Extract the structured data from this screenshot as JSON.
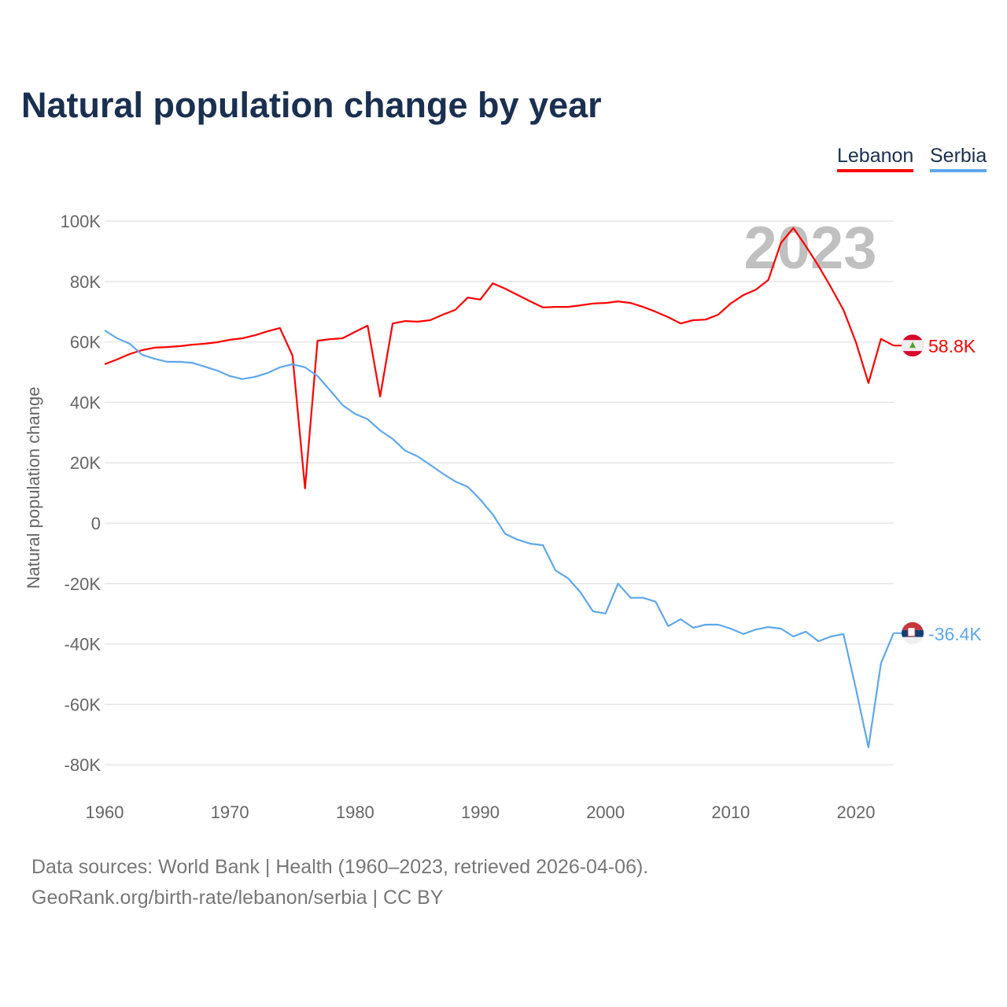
{
  "title": "Natural population change by year",
  "legend": [
    {
      "label": "Lebanon",
      "color": "#ff0000"
    },
    {
      "label": "Serbia",
      "color": "#5ea7ec"
    }
  ],
  "footer": {
    "line1": "Data sources: World Bank | Health (1960–2023, retrieved 2026-04-06).",
    "line2": "GeoRank.org/birth-rate/lebanon/serbia | CC BY"
  },
  "chart_data": {
    "type": "line",
    "title": "Natural population change by year",
    "xlabel": "",
    "ylabel": "Natural population change",
    "year_watermark": "2023",
    "xlim": [
      1960,
      2023
    ],
    "ylim": [
      -80000,
      100000
    ],
    "x_ticks": [
      "1960",
      "1970",
      "1980",
      "1990",
      "2000",
      "2010",
      "2020"
    ],
    "y_ticks": [
      {
        "v": 100000,
        "label": "100K"
      },
      {
        "v": 80000,
        "label": "80K"
      },
      {
        "v": 60000,
        "label": "60K"
      },
      {
        "v": 40000,
        "label": "40K"
      },
      {
        "v": 20000,
        "label": "20K"
      },
      {
        "v": 0,
        "label": "0"
      },
      {
        "v": -20000,
        "label": "-20K"
      },
      {
        "v": -40000,
        "label": "-40K"
      },
      {
        "v": -60000,
        "label": "-60K"
      },
      {
        "v": -80000,
        "label": "-80K"
      }
    ],
    "grid": true,
    "legend_position": "top-right",
    "x_start": 1960,
    "series": [
      {
        "name": "Lebanon",
        "color": "#ff0000",
        "end_label": "58.8K",
        "flag": "lebanon-flag",
        "values": [
          52.6,
          54.2,
          56,
          57.3,
          58.1,
          58.3,
          58.6,
          59.1,
          59.4,
          59.9,
          60.7,
          61.2,
          62.2,
          63.5,
          64.6,
          55.5,
          11.5,
          60.4,
          60.9,
          61.2,
          63.3,
          65.4,
          41.9,
          66.1,
          66.9,
          66.7,
          67.2,
          69,
          70.6,
          74.7,
          74,
          79.4,
          77.6,
          75.5,
          73.4,
          71.4,
          71.6,
          71.6,
          72.1,
          72.7,
          72.9,
          73.4,
          72.9,
          71.6,
          70,
          68.2,
          66.1,
          67.2,
          67.4,
          69,
          72.7,
          75.5,
          77.3,
          80.5,
          92.7,
          97.7,
          91.7,
          85.2,
          78.1,
          70.6,
          59.9,
          46.4,
          61,
          58.8
        ]
      },
      {
        "name": "Serbia",
        "color": "#5ea7ec",
        "end_label": "-36.4K",
        "flag": "serbia-flag",
        "values": [
          63.8,
          61.2,
          59.4,
          55.7,
          54.4,
          53.4,
          53.4,
          53.1,
          51.8,
          50.5,
          48.7,
          47.7,
          48.4,
          49.7,
          51.6,
          52.6,
          51.6,
          48.7,
          44,
          39.1,
          36.2,
          34.4,
          30.7,
          27.9,
          24,
          22.1,
          19.3,
          16.4,
          13.8,
          12,
          7.8,
          2.9,
          -3.6,
          -5.5,
          -6.8,
          -7.3,
          -15.6,
          -18.2,
          -22.9,
          -29.2,
          -29.9,
          -20,
          -24.7,
          -24.7,
          -26,
          -34.1,
          -31.8,
          -34.6,
          -33.6,
          -33.6,
          -34.9,
          -36.7,
          -35.2,
          -34.4,
          -34.9,
          -37.5,
          -35.9,
          -39.1,
          -37.5,
          -36.7,
          -54.9,
          -74.2,
          -46.4,
          -36.4
        ]
      }
    ],
    "value_unit": "thousands"
  }
}
